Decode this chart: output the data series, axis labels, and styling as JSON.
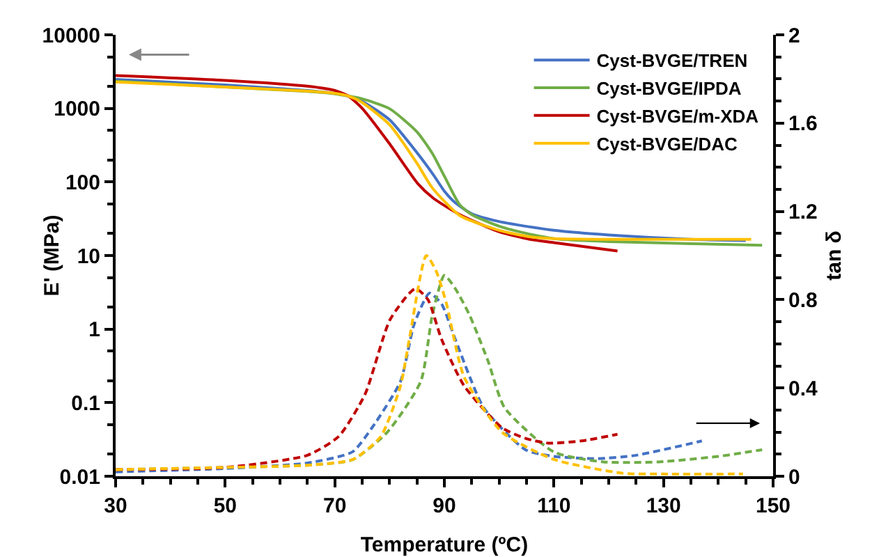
{
  "chart_data": {
    "type": "line",
    "xlabel": "Temperature (ºC)",
    "ylabel": "E' (MPa)",
    "y2label": "tan δ",
    "xlim": [
      30,
      150
    ],
    "xticks": [
      30,
      50,
      70,
      90,
      110,
      130,
      150
    ],
    "ylim": [
      0.01,
      10000
    ],
    "yticks": [
      0.01,
      0.1,
      1,
      10,
      100,
      1000,
      10000
    ],
    "y2lim": [
      0,
      2
    ],
    "y2ticks": [
      0,
      0.4,
      0.8,
      1.2,
      1.6,
      2
    ],
    "log": "y",
    "grid": false,
    "legend": "top right",
    "marker": "none",
    "series": [
      {
        "name": "Cyst-BVGE/TREN",
        "color": "#4472c4",
        "line_style": "solid",
        "x": [
          30,
          50,
          65,
          70,
          72.5,
          75,
          80,
          85,
          88,
          90,
          92,
          95,
          100,
          105.6,
          110,
          120,
          135,
          145
        ],
        "values": [
          2480,
          2080,
          1750,
          1600,
          1470,
          1250,
          700,
          250,
          125,
          75,
          52,
          37,
          29,
          24.5,
          22,
          19,
          16.6,
          16
        ]
      },
      {
        "name": "Cyst-BVGE/IPDA",
        "color": "#70ad47",
        "line_style": "solid",
        "x": [
          30,
          50,
          65,
          70,
          72.5,
          75,
          80,
          85,
          87.8,
          90,
          92.8,
          95,
          100,
          105.6,
          110,
          120,
          135,
          148
        ],
        "values": [
          2350,
          1950,
          1700,
          1580,
          1470,
          1350,
          990,
          480,
          245,
          120,
          49,
          36,
          25,
          19.5,
          17,
          15.5,
          14.5,
          13.8
        ]
      },
      {
        "name": "Cyst-BVGE/m-XDA",
        "color": "#c00000",
        "line_style": "solid",
        "x": [
          30,
          50,
          65,
          70,
          72.5,
          75,
          80,
          85.2,
          88,
          92.8,
          100,
          105.6,
          110,
          121.6
        ],
        "values": [
          2800,
          2400,
          2000,
          1750,
          1470,
          1000,
          330,
          94,
          60,
          36,
          21,
          16.6,
          15,
          11.5
        ]
      },
      {
        "name": "Cyst-BVGE/DAC",
        "color": "#ffc000",
        "line_style": "solid",
        "x": [
          30,
          50,
          65,
          70,
          72.5,
          75,
          80,
          85,
          87.8,
          92.8,
          100,
          105.6,
          110,
          120,
          135,
          146
        ],
        "values": [
          2290,
          1950,
          1720,
          1600,
          1470,
          1200,
          600,
          180,
          83,
          35,
          22,
          18,
          17,
          16.6,
          16.6,
          16.6
        ]
      },
      {
        "color": "#4472c4",
        "axis": "y2",
        "line_style": "dashed",
        "x": [
          30,
          50,
          65,
          73.2,
          76.8,
          82,
          84.5,
          87.3,
          89.5,
          92,
          97.2,
          104.8,
          110,
          118,
          125,
          137
        ],
        "values": [
          0.02,
          0.035,
          0.06,
          0.11,
          0.22,
          0.43,
          0.69,
          0.83,
          0.78,
          0.62,
          0.31,
          0.12,
          0.09,
          0.08,
          0.095,
          0.16
        ]
      },
      {
        "color": "#70ad47",
        "axis": "y2",
        "line_style": "dashed",
        "x": [
          30,
          50,
          65,
          73.3,
          79.6,
          85.7,
          87.8,
          90,
          92,
          94.6,
          98,
          101,
          110,
          119,
          129,
          140,
          148
        ],
        "values": [
          0.03,
          0.04,
          0.05,
          0.075,
          0.2,
          0.43,
          0.73,
          0.91,
          0.85,
          0.73,
          0.52,
          0.31,
          0.11,
          0.065,
          0.065,
          0.09,
          0.12
        ]
      },
      {
        "color": "#c00000",
        "axis": "y2",
        "line_style": "dashed",
        "x": [
          30,
          50,
          65,
          70.7,
          75.5,
          80.1,
          84.7,
          87,
          89.5,
          93.6,
          100.5,
          105,
          109,
          115,
          121.6
        ],
        "values": [
          0.03,
          0.04,
          0.095,
          0.18,
          0.37,
          0.71,
          0.85,
          0.8,
          0.62,
          0.41,
          0.22,
          0.17,
          0.15,
          0.16,
          0.19
        ]
      },
      {
        "color": "#ffc000",
        "axis": "y2",
        "line_style": "dashed",
        "x": [
          30,
          50,
          65,
          73.3,
          78.4,
          82,
          83.6,
          86.7,
          88.5,
          90.3,
          93.6,
          100.5,
          110,
          122.7,
          130,
          144.5
        ],
        "values": [
          0.03,
          0.04,
          0.05,
          0.076,
          0.18,
          0.41,
          0.62,
          1.0,
          0.93,
          0.79,
          0.45,
          0.2,
          0.076,
          0.013,
          0.01,
          0.01
        ]
      }
    ]
  }
}
